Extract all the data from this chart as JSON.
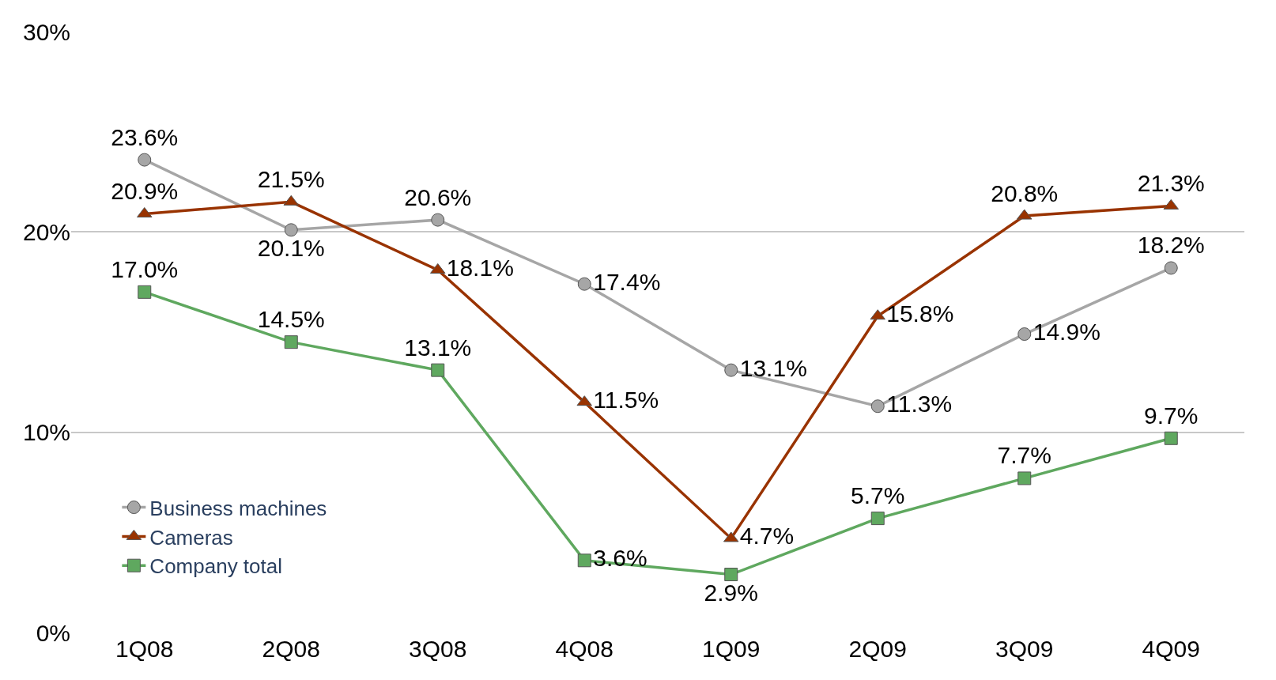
{
  "chart_data": {
    "type": "line",
    "categories": [
      "1Q08",
      "2Q08",
      "3Q08",
      "4Q08",
      "1Q09",
      "2Q09",
      "3Q09",
      "4Q09"
    ],
    "series": [
      {
        "name": "Business machines",
        "color": "#a6a6a6",
        "marker": "circle",
        "values": [
          23.6,
          20.1,
          20.6,
          17.4,
          13.1,
          11.3,
          14.9,
          18.2
        ],
        "value_labels": [
          "23.6%",
          "20.1%",
          "20.6%",
          "17.4%",
          "13.1%",
          "11.3%",
          "14.9%",
          "18.2%"
        ]
      },
      {
        "name": "Cameras",
        "color": "#993300",
        "marker": "triangle",
        "values": [
          20.9,
          21.5,
          18.1,
          11.5,
          4.7,
          15.8,
          20.8,
          21.3
        ],
        "value_labels": [
          "20.9%",
          "21.5%",
          "18.1%",
          "11.5%",
          "4.7%",
          "15.8%",
          "20.8%",
          "21.3%"
        ]
      },
      {
        "name": "Company total",
        "color": "#5fa85f",
        "marker": "square",
        "values": [
          17.0,
          14.5,
          13.1,
          3.6,
          2.9,
          5.7,
          7.7,
          9.7
        ],
        "value_labels": [
          "17.0%",
          "14.5%",
          "13.1%",
          "3.6%",
          "2.9%",
          "5.7%",
          "7.7%",
          "9.7%"
        ]
      }
    ],
    "ylim": [
      0,
      30
    ],
    "yticks": [
      {
        "value": 0,
        "label": "0%"
      },
      {
        "value": 10,
        "label": "10%"
      },
      {
        "value": 20,
        "label": "20%"
      },
      {
        "value": 30,
        "label": "30%"
      }
    ],
    "grid": "y",
    "legend": "bottom left"
  }
}
